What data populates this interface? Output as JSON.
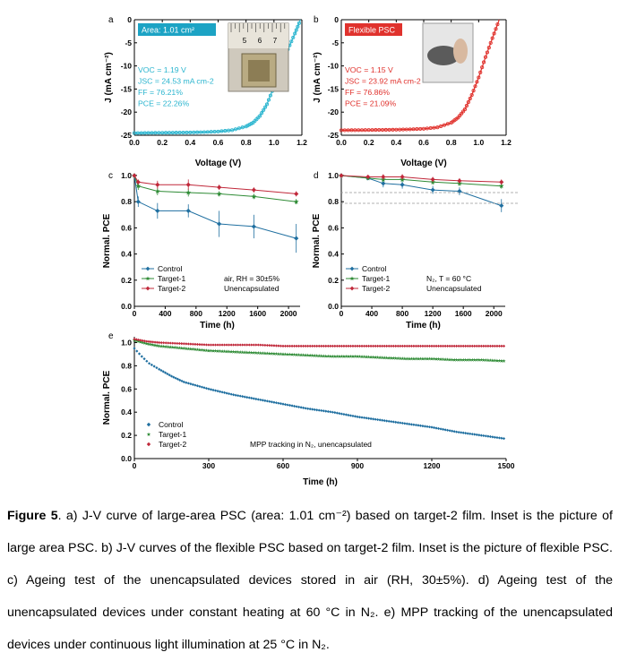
{
  "colors": {
    "cyan": "#2bb5cf",
    "red": "#e0322d",
    "blue": "#1f6fa0",
    "green": "#2e8b35",
    "crimson": "#c0283a",
    "box_cyan": "#1ca3c4",
    "box_red": "#e0322d"
  },
  "chart_data": [
    {
      "id": "a",
      "type": "line",
      "panel_label": "a",
      "xlabel": "Voltage (V)",
      "ylabel": "J (mA cm⁻²)",
      "xlim": [
        0,
        1.2
      ],
      "ylim": [
        -25,
        0
      ],
      "xticks": [
        "0.0",
        "0.2",
        "0.4",
        "0.6",
        "0.8",
        "1.0",
        "1.2"
      ],
      "yticks": [
        "0",
        "-5",
        "-10",
        "-15",
        "-20",
        "-25"
      ],
      "box_label": "Area: 1.01 cm²",
      "stats": [
        "VOC = 1.19 V",
        "JSC = 24.53 mA cm-2",
        "FF = 76.21%",
        "PCE = 22.26%"
      ],
      "inset_text": [
        "5",
        "6",
        "7"
      ],
      "series": [
        {
          "x": [
            0,
            0.1,
            0.2,
            0.3,
            0.4,
            0.5,
            0.6,
            0.7,
            0.8,
            0.85,
            0.9,
            0.95,
            1.0,
            1.05,
            1.1,
            1.15,
            1.19
          ],
          "y": [
            -24.53,
            -24.5,
            -24.47,
            -24.44,
            -24.4,
            -24.33,
            -24.2,
            -23.9,
            -23.1,
            -22.3,
            -20.8,
            -18.3,
            -14.5,
            -10.3,
            -6.4,
            -3.0,
            0
          ]
        }
      ]
    },
    {
      "id": "b",
      "type": "line",
      "panel_label": "b",
      "xlabel": "Voltage (V)",
      "ylabel": "J (mA cm⁻²)",
      "xlim": [
        0,
        1.2
      ],
      "ylim": [
        -25,
        0
      ],
      "xticks": [
        "0.0",
        "0.2",
        "0.4",
        "0.6",
        "0.8",
        "1.0",
        "1.2"
      ],
      "yticks": [
        "0",
        "-5",
        "-10",
        "-15",
        "-20",
        "-25"
      ],
      "box_label": "Flexible PSC",
      "stats": [
        "VOC = 1.15 V",
        "JSC = 23.92 mA cm-2",
        "FF = 76.86%",
        "PCE = 21.09%"
      ],
      "series": [
        {
          "x": [
            0,
            0.1,
            0.2,
            0.3,
            0.4,
            0.5,
            0.6,
            0.7,
            0.8,
            0.85,
            0.9,
            0.95,
            1.0,
            1.05,
            1.1,
            1.15
          ],
          "y": [
            -23.92,
            -23.9,
            -23.87,
            -23.84,
            -23.8,
            -23.72,
            -23.6,
            -23.3,
            -22.3,
            -21.2,
            -19.4,
            -16.3,
            -12.5,
            -8.1,
            -4.0,
            0
          ]
        }
      ]
    },
    {
      "id": "c",
      "type": "line",
      "panel_label": "c",
      "xlabel": "Time (h)",
      "ylabel": "Normal. PCE",
      "xlim": [
        0,
        2150
      ],
      "ylim": [
        0,
        1.0
      ],
      "xticks": [
        "0",
        "400",
        "800",
        "1200",
        "1600",
        "2000"
      ],
      "yticks": [
        "0.0",
        "0.2",
        "0.4",
        "0.6",
        "0.8",
        "1.0"
      ],
      "legend": [
        "Control",
        "Target-1",
        "Target-2"
      ],
      "annotation": [
        "air, RH = 30±5%",
        "Unencapsulated"
      ],
      "series": [
        {
          "name": "Control",
          "x": [
            0,
            50,
            300,
            700,
            1100,
            1550,
            2100
          ],
          "y": [
            1.0,
            0.8,
            0.73,
            0.73,
            0.63,
            0.61,
            0.52
          ],
          "err": [
            0.01,
            0.04,
            0.06,
            0.05,
            0.1,
            0.09,
            0.11
          ]
        },
        {
          "name": "Target-1",
          "x": [
            0,
            50,
            300,
            700,
            1100,
            1550,
            2100
          ],
          "y": [
            1.0,
            0.92,
            0.88,
            0.87,
            0.86,
            0.84,
            0.8
          ],
          "err": [
            0.01,
            0.03,
            0.03,
            0.03,
            0.02,
            0.02,
            0.02
          ]
        },
        {
          "name": "Target-2",
          "x": [
            0,
            50,
            300,
            700,
            1100,
            1550,
            2100
          ],
          "y": [
            1.0,
            0.95,
            0.93,
            0.93,
            0.91,
            0.89,
            0.86
          ],
          "err": [
            0.01,
            0.02,
            0.03,
            0.04,
            0.02,
            0.02,
            0.02
          ]
        }
      ]
    },
    {
      "id": "d",
      "type": "line",
      "panel_label": "d",
      "xlabel": "Time (h)",
      "ylabel": "Normal. PCE",
      "xlim": [
        0,
        2150
      ],
      "ylim": [
        0,
        1.0
      ],
      "xticks": [
        "0",
        "400",
        "800",
        "1200",
        "1600",
        "2000"
      ],
      "yticks": [
        "0.0",
        "0.2",
        "0.4",
        "0.6",
        "0.8",
        "1.0"
      ],
      "legend": [
        "Control",
        "Target-1",
        "Target-2"
      ],
      "annotation": [
        "N₂, T = 60 °C",
        "Unencapsulated"
      ],
      "series": [
        {
          "name": "Control",
          "x": [
            0,
            350,
            550,
            800,
            1200,
            1550,
            2100
          ],
          "y": [
            1.0,
            0.98,
            0.94,
            0.93,
            0.89,
            0.88,
            0.77
          ],
          "err": [
            0.01,
            0.01,
            0.03,
            0.03,
            0.03,
            0.03,
            0.05
          ]
        },
        {
          "name": "Target-1",
          "x": [
            0,
            350,
            550,
            800,
            1200,
            1550,
            2100
          ],
          "y": [
            1.0,
            0.98,
            0.97,
            0.97,
            0.95,
            0.94,
            0.92
          ],
          "err": [
            0.01,
            0.01,
            0.02,
            0.02,
            0.02,
            0.02,
            0.02
          ]
        },
        {
          "name": "Target-2",
          "x": [
            0,
            350,
            550,
            800,
            1200,
            1550,
            2100
          ],
          "y": [
            1.0,
            0.99,
            0.99,
            0.99,
            0.97,
            0.96,
            0.95
          ],
          "err": [
            0.01,
            0.01,
            0.02,
            0.02,
            0.02,
            0.02,
            0.02
          ]
        }
      ]
    },
    {
      "id": "e",
      "type": "scatter",
      "panel_label": "e",
      "xlabel": "Time (h)",
      "ylabel": "Normal. PCE",
      "xlim": [
        0,
        1500
      ],
      "ylim": [
        0,
        1.05
      ],
      "xticks": [
        "0",
        "300",
        "600",
        "900",
        "1200",
        "1500"
      ],
      "yticks": [
        "0.0",
        "0.2",
        "0.4",
        "0.6",
        "0.8",
        "1.0"
      ],
      "legend": [
        "Control",
        "Target-1",
        "Target-2"
      ],
      "annotation": "MPP tracking in N₂, unencapsulated",
      "series": [
        {
          "name": "Control",
          "x": [
            0,
            30,
            60,
            100,
            150,
            200,
            300,
            400,
            500,
            600,
            700,
            800,
            900,
            1000,
            1100,
            1200,
            1300,
            1400,
            1500
          ],
          "y": [
            0.95,
            0.88,
            0.82,
            0.77,
            0.71,
            0.66,
            0.6,
            0.55,
            0.51,
            0.47,
            0.43,
            0.4,
            0.36,
            0.33,
            0.3,
            0.27,
            0.23,
            0.2,
            0.17
          ]
        },
        {
          "name": "Target-1",
          "x": [
            0,
            50,
            100,
            200,
            300,
            400,
            500,
            600,
            700,
            800,
            900,
            1000,
            1100,
            1200,
            1300,
            1400,
            1500
          ],
          "y": [
            1.02,
            0.99,
            0.97,
            0.95,
            0.93,
            0.92,
            0.91,
            0.9,
            0.89,
            0.88,
            0.88,
            0.87,
            0.86,
            0.86,
            0.85,
            0.85,
            0.84
          ]
        },
        {
          "name": "Target-2",
          "x": [
            0,
            50,
            100,
            200,
            300,
            400,
            500,
            600,
            700,
            800,
            900,
            1000,
            1100,
            1200,
            1300,
            1400,
            1500
          ],
          "y": [
            1.03,
            1.01,
            1.0,
            0.99,
            0.98,
            0.98,
            0.98,
            0.97,
            0.97,
            0.97,
            0.97,
            0.97,
            0.97,
            0.97,
            0.97,
            0.97,
            0.97
          ]
        }
      ]
    }
  ],
  "caption": {
    "bold": "Figure 5",
    "text": ". a) J-V curve of large-area PSC (area: 1.01 cm⁻²) based on target-2 film. Inset is the picture of large area PSC. b) J-V curves of the flexible PSC based on target-2 film. Inset is the picture of flexible PSC. c) Ageing test of the unencapsulated devices stored in air (RH, 30±5%). d) Ageing test of the unencapsulated devices under constant heating at 60 °C in N₂. e) MPP tracking of the unencapsulated devices under continuous light illumination at 25 °C in N₂."
  }
}
